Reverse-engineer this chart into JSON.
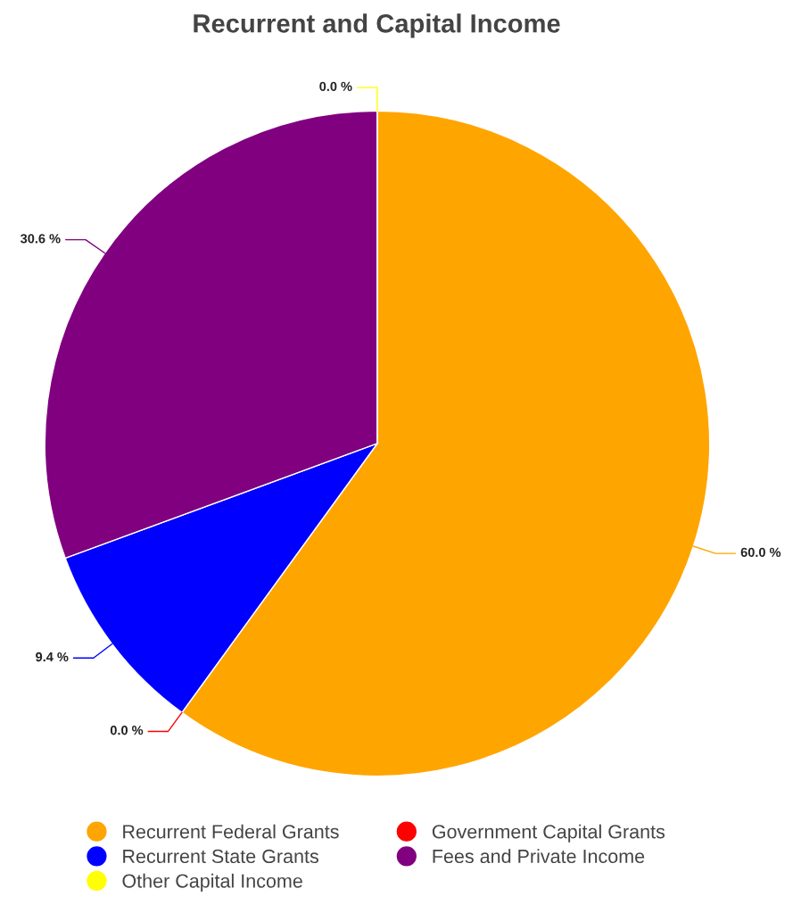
{
  "chart_data": {
    "type": "pie",
    "title": "Recurrent and Capital Income",
    "categories": [
      "Recurrent Federal Grants",
      "Government Capital Grants",
      "Recurrent State Grants",
      "Fees and Private Income",
      "Other Capital Income"
    ],
    "values": [
      60.0,
      0.0,
      9.4,
      30.6,
      0.0
    ],
    "colors": [
      "#ffa500",
      "#ff0000",
      "#0000ff",
      "#800080",
      "#ffff00"
    ],
    "value_labels": [
      "60.0 %",
      "0.0 %",
      "9.4 %",
      "30.6 %",
      "0.0 %"
    ],
    "legend": "bottom"
  }
}
